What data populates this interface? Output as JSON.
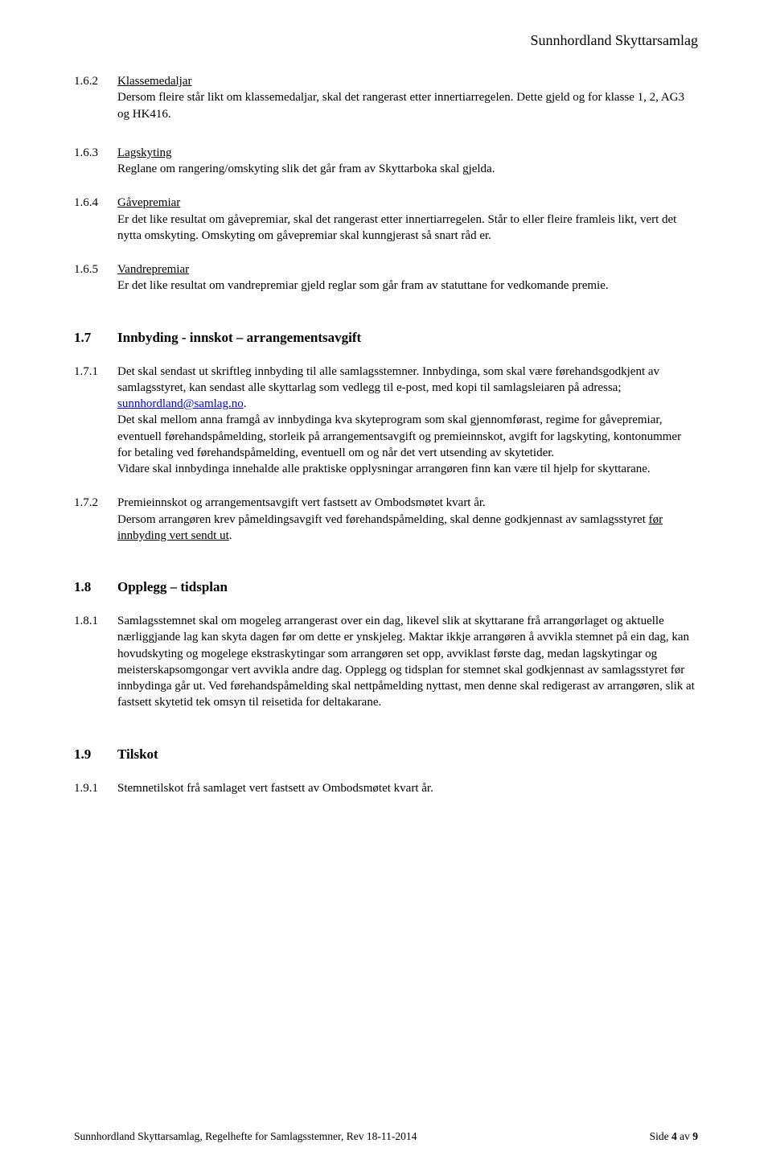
{
  "header": {
    "org": "Sunnhordland Skyttarsamlag"
  },
  "sections": [
    {
      "num": "1.6.2",
      "title": "Klassemedaljar",
      "title_underline": true,
      "body": "Dersom fleire står likt om klassemedaljar, skal det rangerast etter innertiarregelen. Dette gjeld og for klasse 1, 2, AG3 og HK416.",
      "gap": "gap-l"
    },
    {
      "num": "1.6.3",
      "title": "Lagskyting",
      "title_underline": true,
      "body": "Reglane om rangering/omskyting slik det går fram av Skyttarboka skal gjelda.",
      "gap": "gap-m"
    },
    {
      "num": "1.6.4",
      "title": "Gåvepremiar",
      "title_underline": true,
      "body": "Er det like resultat om gåvepremiar, skal det rangerast etter innertiarregelen. Står to eller fleire framleis likt, vert det nytta omskyting. Omskyting om gåvepremiar skal kunngjerast så snart råd er.",
      "gap": "gap-m"
    },
    {
      "num": "1.6.5",
      "title": "Vandrepremiar",
      "title_underline": true,
      "body": "Er det like resultat om vandrepremiar gjeld reglar som går fram av statuttane for vedkomande premie.",
      "gap": "gap-xl"
    },
    {
      "num": "1.7",
      "heading": "Innbyding - innskot – arrangementsavgift",
      "is_heading": true,
      "gap": "gap-m"
    },
    {
      "num": "1.7.1",
      "body_html": true,
      "body_parts": [
        {
          "t": "Det skal sendast ut skriftleg innbyding til alle samlagsstemner. Innbydinga, som skal være førehandsgodkjent av samlagsstyret, kan sendast alle skyttarlag som vedlegg til e-post, med kopi til samlagsleiaren på adressa; "
        },
        {
          "t": "sunnhordland@samlag.no",
          "cls": "link"
        },
        {
          "t": "."
        },
        {
          "br": true
        },
        {
          "t": "Det skal mellom anna framgå av innbydinga kva skyteprogram som skal gjennomførast, regime for gåvepremiar, eventuell førehandspåmelding, storleik på arrangementsavgift og premieinnskot, avgift for lagskyting, kontonummer for betaling ved førehandspåmelding, eventuell om og når det vert utsending av skytetider."
        },
        {
          "br": true
        },
        {
          "t": "Vidare skal innbydinga innehalde alle praktiske opplysningar arrangøren finn kan være til hjelp for skyttarane."
        }
      ],
      "gap": "gap-m"
    },
    {
      "num": "1.7.2",
      "body_html": true,
      "body_parts": [
        {
          "t": "Premieinnskot og arrangementsavgift vert fastsett av Ombodsmøtet kvart år."
        },
        {
          "br": true
        },
        {
          "t": "Dersom arrangøren krev påmeldingsavgift ved førehandspåmelding, skal denne godkjennast av samlagsstyret "
        },
        {
          "t": "før innbyding vert sendt ut",
          "cls": "underline"
        },
        {
          "t": "."
        }
      ],
      "gap": "gap-xl"
    },
    {
      "num": "1.8",
      "heading": "Opplegg – tidsplan",
      "is_heading": true,
      "gap": "gap-m"
    },
    {
      "num": "1.8.1",
      "body": "Samlagsstemnet skal om mogeleg arrangerast over ein dag, likevel slik at skyttarane frå arrangørlaget og aktuelle nærliggjande lag kan skyta dagen før om dette er ynskjeleg. Maktar ikkje arrangøren å avvikla stemnet på ein dag, kan hovudskyting og mogelege ekstraskytingar som arrangøren set opp, avviklast første dag, medan lagskytingar og meisterskapsomgongar vert avvikla andre dag. Opplegg og tidsplan for stemnet skal godkjennast av samlagsstyret før innbydinga går ut. Ved førehandspåmelding skal nettpåmelding nyttast, men denne skal redigerast av arrangøren, slik at fastsett skytetid tek omsyn til reisetida for deltakarane.",
      "gap": "gap-xl"
    },
    {
      "num": "1.9",
      "heading": "Tilskot",
      "is_heading": true,
      "gap": "gap-m"
    },
    {
      "num": "1.9.1",
      "body": "Stemnetilskot frå samlaget vert fastsett av Ombodsmøtet kvart år.",
      "gap": "gap-m"
    }
  ],
  "footer": {
    "left": "Sunnhordland Skyttarsamlag, Regelhefte for Samlagsstemner, Rev 18-11-2014",
    "right_prefix": "Side ",
    "page_current": "4",
    "right_mid": " av ",
    "page_total": "9"
  }
}
